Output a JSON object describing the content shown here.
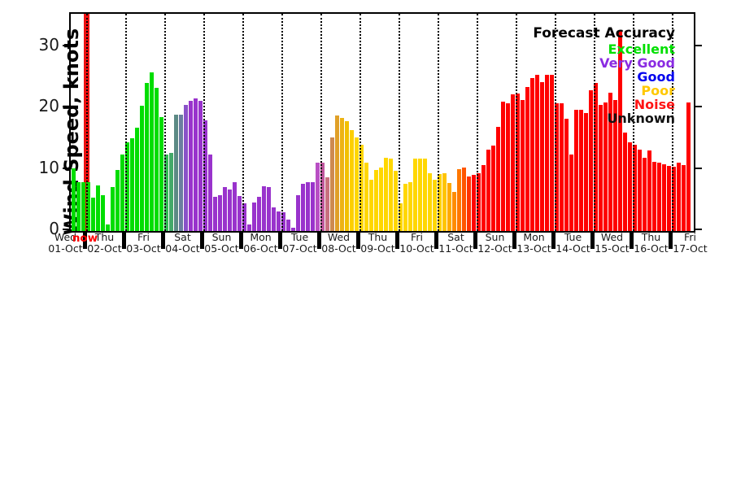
{
  "now_label": "now",
  "legend": {
    "title": "Forecast Accuracy",
    "entries": [
      {
        "label": "Excellent",
        "color": "#00e000"
      },
      {
        "label": "Very Good",
        "color": "#8a2be2"
      },
      {
        "label": "Good",
        "color": "#0000ee"
      },
      {
        "label": "Poor",
        "color": "#ffc800"
      },
      {
        "label": "Noise",
        "color": "#ff1414"
      },
      {
        "label": "Unknown",
        "color": "#111111"
      }
    ]
  },
  "chart_data": {
    "type": "bar",
    "title": "",
    "xlabel": "",
    "ylabel": "Wind Speed, knots",
    "ylim": [
      0,
      35.4
    ],
    "y_ticks": [
      0,
      10,
      20,
      30
    ],
    "grid": "vertical-dotted-day-boundaries",
    "legend_position": "top-right",
    "bar_interval_hours": 3,
    "now_marker": {
      "label": "now",
      "at_day_boundary_index": 0,
      "color": "#ee1111"
    },
    "x_days": [
      {
        "day": "Wed",
        "date": "01-Oct"
      },
      {
        "day": "Thu",
        "date": "02-Oct"
      },
      {
        "day": "Fri",
        "date": "03-Oct"
      },
      {
        "day": "Sat",
        "date": "04-Oct"
      },
      {
        "day": "Sun",
        "date": "05-Oct"
      },
      {
        "day": "Mon",
        "date": "06-Oct"
      },
      {
        "day": "Tue",
        "date": "07-Oct"
      },
      {
        "day": "Wed",
        "date": "08-Oct"
      },
      {
        "day": "Thu",
        "date": "09-Oct"
      },
      {
        "day": "Fri",
        "date": "10-Oct"
      },
      {
        "day": "Sat",
        "date": "11-Oct"
      },
      {
        "day": "Sun",
        "date": "12-Oct"
      },
      {
        "day": "Mon",
        "date": "13-Oct"
      },
      {
        "day": "Tue",
        "date": "14-Oct"
      },
      {
        "day": "Wed",
        "date": "15-Oct"
      },
      {
        "day": "Thu",
        "date": "16-Oct"
      },
      {
        "day": "Fri",
        "date": "17-Oct"
      }
    ],
    "bars_first_day": 2,
    "bars_per_day": 8,
    "values": [
      10.2,
      7.9,
      8.0,
      7.9,
      5.5,
      7.4,
      5.8,
      1.0,
      7.2,
      10.0,
      12.4,
      14.4,
      15.1,
      16.8,
      20.4,
      24.1,
      25.8,
      23.3,
      18.6,
      12.4,
      12.7,
      18.9,
      19.0,
      20.5,
      21.2,
      21.6,
      21.2,
      18.0,
      12.4,
      5.6,
      5.8,
      7.2,
      6.7,
      7.9,
      5.7,
      4.5,
      1.0,
      4.7,
      5.6,
      7.3,
      7.1,
      3.8,
      3.2,
      3.0,
      1.8,
      0.5,
      5.9,
      7.7,
      7.9,
      8.0,
      11.1,
      11.1,
      8.7,
      15.3,
      18.8,
      18.4,
      17.9,
      16.5,
      15.3,
      14.1,
      11.2,
      8.3,
      9.9,
      10.3,
      12.0,
      11.8,
      9.8,
      4.5,
      7.7,
      7.9,
      11.8,
      11.8,
      11.8,
      9.4,
      8.4,
      9.3,
      9.4,
      7.8,
      6.3,
      10.1,
      10.3,
      8.9,
      9.2,
      9.4,
      10.8,
      13.3,
      13.9,
      17.0,
      21.1,
      20.8,
      22.3,
      22.4,
      21.4,
      23.5,
      24.9,
      25.5,
      24.2,
      25.5,
      25.5,
      20.8,
      20.8,
      18.3,
      12.5,
      19.8,
      19.8,
      19.2,
      23.0,
      24.1,
      20.5,
      20.9,
      22.6,
      21.3,
      32.6,
      16.0,
      14.4,
      14.0,
      13.2,
      12.0,
      13.1,
      11.3,
      11.2,
      10.9,
      10.6,
      10.5,
      11.2,
      10.8,
      20.9
    ],
    "colors": [
      "#00dd00",
      "#00dd00",
      "#00dd00",
      "#00dd00",
      "#00dd00",
      "#00dd00",
      "#00dd00",
      "#00dd00",
      "#00dd00",
      "#00dd00",
      "#00dd00",
      "#00dd00",
      "#00dd00",
      "#00dd00",
      "#00dd00",
      "#00dd00",
      "#00dd00",
      "#00dd00",
      "#00dd00",
      "#33bb55",
      "#44aa6a",
      "#5c8a85",
      "#6b7da0",
      "#8a52c8",
      "#9933cc",
      "#9933cc",
      "#9933cc",
      "#9933cc",
      "#9933cc",
      "#9933cc",
      "#9933cc",
      "#9933cc",
      "#9933cc",
      "#9933cc",
      "#9933cc",
      "#9933cc",
      "#9933cc",
      "#9933cc",
      "#9933cc",
      "#9933cc",
      "#9933cc",
      "#9933cc",
      "#9933cc",
      "#9933cc",
      "#9933cc",
      "#9933cc",
      "#9933cc",
      "#9933cc",
      "#9933cc",
      "#9933cc",
      "#b84fc4",
      "#c0579d",
      "#c8707f",
      "#cd8a50",
      "#e0a028",
      "#edb313",
      "#f2c000",
      "#fccf00",
      "#ffd700",
      "#ffd700",
      "#ffd700",
      "#ffd700",
      "#ffd700",
      "#ffd700",
      "#ffd700",
      "#ffd700",
      "#ffd700",
      "#ffd700",
      "#ffd700",
      "#ffd700",
      "#ffd700",
      "#ffd700",
      "#ffd700",
      "#ffd700",
      "#ffd700",
      "#ffd000",
      "#ffc400",
      "#ffaa00",
      "#ff8c00",
      "#ff7700",
      "#ff5500",
      "#ff3300",
      "#ff0000",
      "#ff0000",
      "#ff0000",
      "#ff0000",
      "#ff0000",
      "#ff0000",
      "#ff0000",
      "#ff0000",
      "#ff0000",
      "#ff0000",
      "#ff0000",
      "#ff0000",
      "#ff0000",
      "#ff0000",
      "#ff0000",
      "#ff0000",
      "#ff0000",
      "#ff0000",
      "#ff0000",
      "#ff0000",
      "#ff0000",
      "#ff0000",
      "#ff0000",
      "#ff0000",
      "#ff0000",
      "#ff0000",
      "#ff0000",
      "#ff0000",
      "#ff0000",
      "#ff0000",
      "#ff0000",
      "#ff0000",
      "#ff0000",
      "#ff0000",
      "#ff0000",
      "#ff0000",
      "#ff0000",
      "#ff0000",
      "#ff0000",
      "#ff0000",
      "#ff0000",
      "#ff0000",
      "#ff0000",
      "#ff0000",
      "#ff0000"
    ]
  }
}
